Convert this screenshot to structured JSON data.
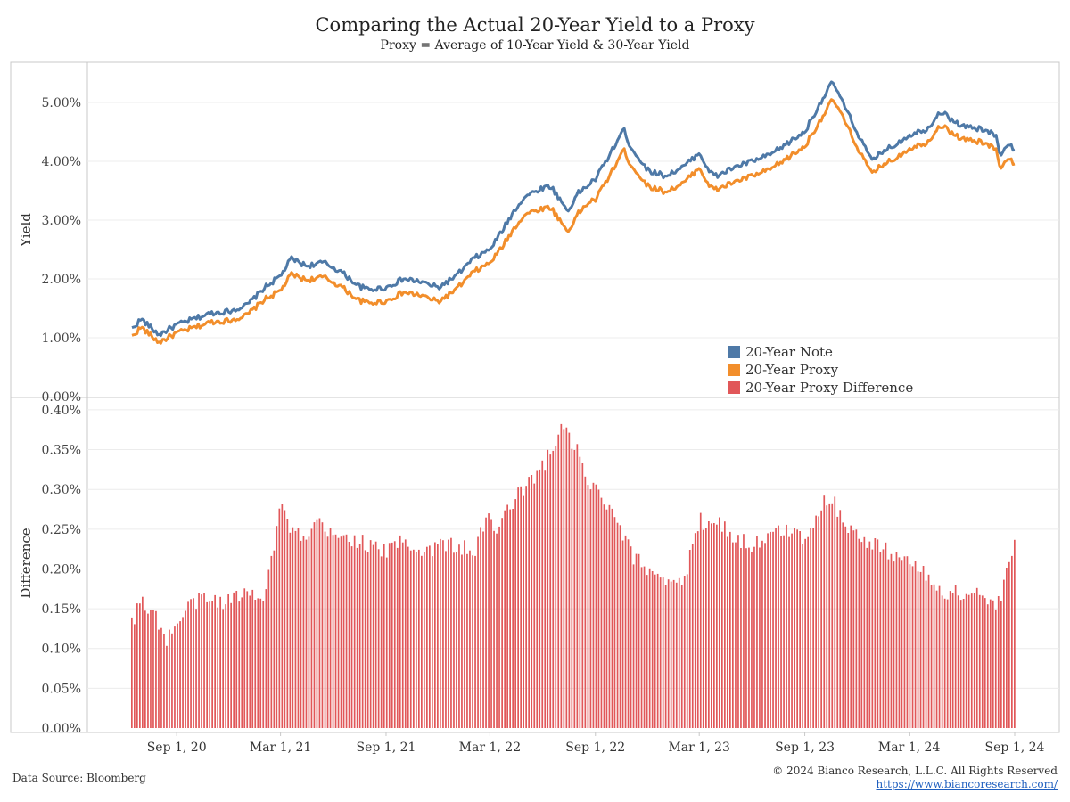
{
  "header": {
    "title": "Comparing the Actual 20-Year Yield to a Proxy",
    "subtitle": "Proxy = Average of 10-Year Yield & 30-Year Yield"
  },
  "footer": {
    "source": "Data Source: Bloomberg",
    "copyright": "© 2024 Bianco Research, L.L.C. All Rights Reserved",
    "url": "https://www.biancoresearch.com/"
  },
  "colors": {
    "note": "#4e79a7",
    "proxy": "#f28e2b",
    "difference": "#e15759"
  },
  "chart_data": [
    {
      "type": "line",
      "title": "",
      "ylabel": "Yield",
      "ylim": [
        0,
        5.5
      ],
      "y_ticks": [
        "0.00%",
        "1.00%",
        "2.00%",
        "3.00%",
        "4.00%",
        "5.00%"
      ],
      "grid": true,
      "legend_placement": "bottom-right",
      "x_ticks": [
        "Sep 1, 20",
        "Mar 1, 21",
        "Sep 1, 21",
        "Mar 1, 22",
        "Sep 1, 22",
        "Mar 1, 23",
        "Sep 1, 23",
        "Mar 1, 24",
        "Sep 1, 24"
      ],
      "x": [
        "2020-06-15",
        "2020-07-01",
        "2020-08-01",
        "2020-09-01",
        "2020-10-01",
        "2020-11-01",
        "2020-12-01",
        "2021-01-01",
        "2021-02-01",
        "2021-03-01",
        "2021-03-20",
        "2021-04-15",
        "2021-05-15",
        "2021-06-15",
        "2021-07-15",
        "2021-08-01",
        "2021-09-01",
        "2021-10-01",
        "2021-11-01",
        "2021-12-01",
        "2022-01-01",
        "2022-02-01",
        "2022-03-01",
        "2022-03-20",
        "2022-04-15",
        "2022-05-01",
        "2022-06-01",
        "2022-06-15",
        "2022-07-15",
        "2022-08-01",
        "2022-08-20",
        "2022-09-01",
        "2022-10-01",
        "2022-10-20",
        "2022-11-01",
        "2022-12-01",
        "2023-01-01",
        "2023-02-01",
        "2023-03-01",
        "2023-03-20",
        "2023-04-01",
        "2023-05-01",
        "2023-06-01",
        "2023-07-01",
        "2023-08-01",
        "2023-09-01",
        "2023-10-01",
        "2023-10-20",
        "2023-11-01",
        "2023-12-01",
        "2023-12-27",
        "2024-01-15",
        "2024-02-01",
        "2024-03-01",
        "2024-04-01",
        "2024-04-25",
        "2024-05-15",
        "2024-06-01",
        "2024-07-01",
        "2024-08-01",
        "2024-08-05",
        "2024-08-20",
        "2024-09-01"
      ],
      "series": [
        {
          "name": "20-Year Note",
          "values": [
            1.15,
            1.32,
            1.05,
            1.22,
            1.32,
            1.42,
            1.45,
            1.55,
            1.85,
            2.05,
            2.35,
            2.22,
            2.28,
            2.12,
            1.88,
            1.82,
            1.85,
            2.0,
            1.95,
            1.85,
            2.05,
            2.35,
            2.5,
            2.78,
            3.2,
            3.4,
            3.55,
            3.58,
            3.15,
            3.45,
            3.6,
            3.7,
            4.2,
            4.55,
            4.25,
            3.85,
            3.75,
            3.9,
            4.15,
            3.8,
            3.75,
            3.9,
            4.0,
            4.1,
            4.3,
            4.5,
            5.05,
            5.35,
            5.1,
            4.5,
            4.0,
            4.18,
            4.25,
            4.45,
            4.55,
            4.85,
            4.7,
            4.6,
            4.55,
            4.45,
            4.1,
            4.3,
            4.2
          ]
        },
        {
          "name": "20-Year Proxy",
          "values": [
            1.02,
            1.18,
            0.92,
            1.08,
            1.17,
            1.27,
            1.29,
            1.38,
            1.65,
            1.8,
            2.08,
            1.98,
            2.03,
            1.87,
            1.64,
            1.59,
            1.62,
            1.77,
            1.72,
            1.61,
            1.82,
            2.12,
            2.27,
            2.51,
            2.9,
            3.1,
            3.2,
            3.22,
            2.8,
            3.1,
            3.3,
            3.35,
            3.85,
            4.2,
            3.95,
            3.58,
            3.48,
            3.62,
            3.9,
            3.55,
            3.52,
            3.65,
            3.75,
            3.85,
            4.05,
            4.25,
            4.75,
            5.05,
            4.85,
            4.25,
            3.78,
            3.95,
            4.02,
            4.22,
            4.32,
            4.62,
            4.48,
            4.38,
            4.33,
            4.22,
            3.88,
            4.06,
            3.96
          ]
        }
      ]
    },
    {
      "type": "bar",
      "title": "",
      "ylabel": "Difference",
      "ylim": [
        0,
        0.41
      ],
      "y_ticks": [
        "0.00%",
        "0.05%",
        "0.10%",
        "0.15%",
        "0.20%",
        "0.25%",
        "0.30%",
        "0.35%",
        "0.40%"
      ],
      "grid": true,
      "x_ticks": [
        "Sep 1, 20",
        "Mar 1, 21",
        "Sep 1, 21",
        "Mar 1, 22",
        "Sep 1, 22",
        "Mar 1, 23",
        "Sep 1, 23",
        "Mar 1, 24",
        "Sep 1, 24"
      ],
      "x": [
        "2020-06-15",
        "2020-07-01",
        "2020-07-20",
        "2020-08-15",
        "2020-09-01",
        "2020-10-01",
        "2020-11-01",
        "2020-12-01",
        "2021-01-01",
        "2021-02-01",
        "2021-02-15",
        "2021-03-01",
        "2021-03-20",
        "2021-04-15",
        "2021-05-01",
        "2021-06-01",
        "2021-07-01",
        "2021-08-01",
        "2021-09-01",
        "2021-10-01",
        "2021-11-01",
        "2021-12-01",
        "2022-01-01",
        "2022-02-01",
        "2022-03-01",
        "2022-03-15",
        "2022-04-01",
        "2022-05-01",
        "2022-06-01",
        "2022-06-20",
        "2022-07-01",
        "2022-07-20",
        "2022-08-01",
        "2022-08-20",
        "2022-09-01",
        "2022-09-20",
        "2022-10-15",
        "2022-11-01",
        "2022-12-01",
        "2023-01-01",
        "2023-02-01",
        "2023-02-15",
        "2023-03-01",
        "2023-04-01",
        "2023-05-01",
        "2023-06-01",
        "2023-07-01",
        "2023-08-01",
        "2023-09-01",
        "2023-10-01",
        "2023-10-20",
        "2023-11-01",
        "2023-12-01",
        "2024-01-01",
        "2024-02-01",
        "2024-03-01",
        "2024-04-01",
        "2024-05-01",
        "2024-06-01",
        "2024-07-01",
        "2024-08-01",
        "2024-08-10",
        "2024-08-25",
        "2024-09-01"
      ],
      "series": [
        {
          "name": "20-Year Proxy Difference",
          "values": [
            0.13,
            0.16,
            0.15,
            0.11,
            0.13,
            0.16,
            0.16,
            0.16,
            0.17,
            0.17,
            0.22,
            0.28,
            0.25,
            0.23,
            0.26,
            0.24,
            0.24,
            0.23,
            0.22,
            0.24,
            0.22,
            0.23,
            0.23,
            0.22,
            0.27,
            0.24,
            0.28,
            0.3,
            0.33,
            0.35,
            0.38,
            0.36,
            0.35,
            0.3,
            0.3,
            0.28,
            0.25,
            0.22,
            0.2,
            0.19,
            0.18,
            0.22,
            0.26,
            0.26,
            0.24,
            0.23,
            0.24,
            0.25,
            0.24,
            0.28,
            0.29,
            0.27,
            0.24,
            0.23,
            0.22,
            0.21,
            0.19,
            0.17,
            0.17,
            0.17,
            0.15,
            0.17,
            0.21,
            0.24
          ]
        }
      ]
    }
  ]
}
